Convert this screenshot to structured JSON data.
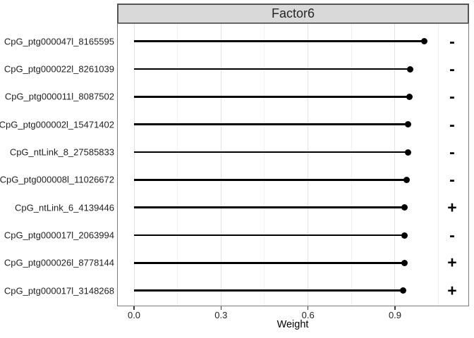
{
  "strip": {
    "title": "Factor6"
  },
  "axes": {
    "x_label": "Weight",
    "x_tick_labels": [
      "0.0",
      "0.3",
      "0.6",
      "0.9"
    ]
  },
  "chart_data": {
    "type": "bar",
    "variant": "horizontal-lollipop",
    "title": "Factor6",
    "xlabel": "Weight",
    "ylabel": "",
    "categories": [
      "CpG_ptg000047l_8165595",
      "CpG_ptg000022l_8261039",
      "CpG_ptg000011l_8087502",
      "CpG_ptg000002l_15471402",
      "CpG_ntLink_8_27585833",
      "CpG_ptg000008l_11026672",
      "CpG_ntLink_6_4139446",
      "CpG_ptg000017l_2063994",
      "CpG_ptg000026l_8778144",
      "CpG_ptg000017l_3148268"
    ],
    "values": [
      1.002,
      0.953,
      0.949,
      0.946,
      0.944,
      0.939,
      0.934,
      0.932,
      0.932,
      0.929
    ],
    "signs": [
      "-",
      "-",
      "-",
      "-",
      "-",
      "-",
      "+",
      "-",
      "+",
      "+"
    ],
    "xlim": [
      -0.058,
      1.155
    ],
    "x_major_ticks": [
      0.0,
      0.3,
      0.6,
      0.9
    ],
    "x_tick_labels": [
      "0.0",
      "0.3",
      "0.6",
      "0.9"
    ],
    "x_minor_ticks": [
      0.15,
      0.45,
      0.75,
      1.05
    ],
    "sign_x": 1.097,
    "grid": "vertical-only",
    "legend": "none"
  },
  "colors": {
    "strip_fill": "#d9d9d9",
    "strip_border": "#545454",
    "panel_border": "#7d7d7d",
    "grid_major": "#e3e3e3",
    "grid_minor": "#f1f1f1",
    "stem": "#000000",
    "point": "#000000",
    "text": "#1f1f1f",
    "background": "#ffffff"
  }
}
